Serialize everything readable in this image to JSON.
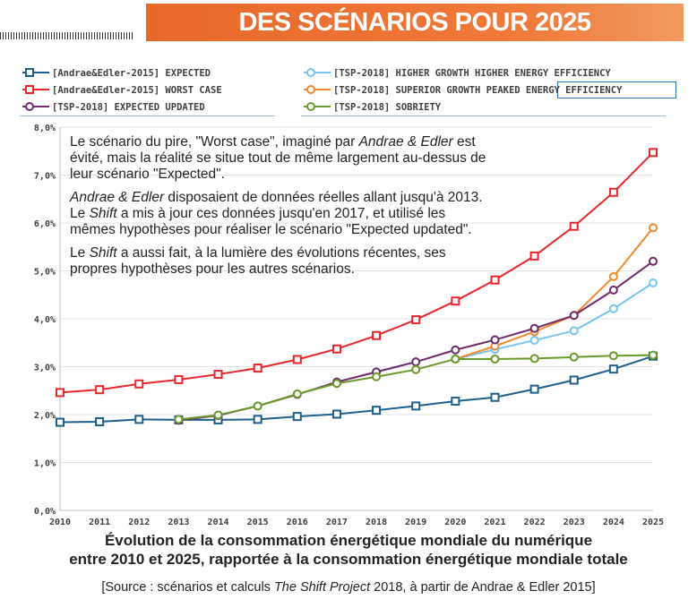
{
  "header": {
    "title": "DES SCÉNARIOS POUR 2025"
  },
  "annotation": {
    "p1": [
      "Le scénario du pire, \"Worst case\", imaginé par ",
      {
        "i": "Andrae & Edler"
      },
      " est évité, mais la réalité se situe tout de même largement au-dessus de leur scénario \"Expected\"."
    ],
    "p2": [
      {
        "i": "Andrae & Edler"
      },
      " disposaient de données réelles allant jusqu'à 2013. Le ",
      {
        "i": "Shift"
      },
      " a mis à jour ces données jusqu'en 2017, et utilisé les mêmes hypothèses pour réaliser le scénario \"Expected updated\"."
    ],
    "p3": [
      "Le ",
      {
        "i": "Shift"
      },
      " a aussi fait, à la lumière des évolutions récentes, ses propres hypothèses pour les autres scénarios."
    ]
  },
  "caption": {
    "line1": "Évolution de la consommation énergétique mondiale du numérique",
    "line2": "entre 2010 et 2025, rapportée à la consommation énergétique mondiale totale"
  },
  "source": [
    "[Source : scénarios et calculs ",
    {
      "i": "The Shift Project"
    },
    " 2018, à partir de Andrae & Edler 2015]"
  ],
  "chart_data": {
    "type": "line",
    "title": "",
    "xlabel": "",
    "ylabel": "",
    "x": [
      2010,
      2011,
      2012,
      2013,
      2014,
      2015,
      2016,
      2017,
      2018,
      2019,
      2020,
      2021,
      2022,
      2023,
      2024,
      2025
    ],
    "ylim": [
      0,
      8
    ],
    "yticks": [
      "0,0%",
      "1,0%",
      "2,0%",
      "3,0%",
      "4,0%",
      "5,0%",
      "6,0%",
      "7,0%",
      "8,0%"
    ],
    "grid": true,
    "legend_position": "top",
    "series": [
      {
        "name": "[Andrae&Edler-2015] EXPECTED",
        "color": "#1f5f8b",
        "marker": "square",
        "x": [
          2010,
          2011,
          2012,
          2013,
          2014,
          2015,
          2016,
          2017,
          2018,
          2019,
          2020,
          2021,
          2022,
          2023,
          2024,
          2025
        ],
        "values": [
          1.84,
          1.85,
          1.9,
          1.89,
          1.89,
          1.9,
          1.96,
          2.01,
          2.09,
          2.18,
          2.28,
          2.36,
          2.53,
          2.72,
          2.95,
          3.22
        ]
      },
      {
        "name": "[Andrae&Edler-2015] WORST CASE",
        "color": "#e8262b",
        "marker": "square",
        "x": [
          2010,
          2011,
          2012,
          2013,
          2014,
          2015,
          2016,
          2017,
          2018,
          2019,
          2020,
          2021,
          2022,
          2023,
          2024,
          2025
        ],
        "values": [
          2.46,
          2.52,
          2.64,
          2.73,
          2.84,
          2.97,
          3.15,
          3.37,
          3.65,
          3.98,
          4.37,
          4.81,
          5.31,
          5.93,
          6.64,
          7.47
        ]
      },
      {
        "name": "[TSP-2018] HIGHER GROWTH HIGHER ENERGY EFFICIENCY",
        "color": "#79c4ee",
        "marker": "circle",
        "x": [
          2020,
          2021,
          2022,
          2023,
          2024,
          2025
        ],
        "values": [
          3.16,
          3.36,
          3.55,
          3.75,
          4.21,
          4.75
        ]
      },
      {
        "name": "[TSP-2018] SUPERIOR GROWTH PEAKED ENERGY EFFICIENCY",
        "color": "#ef8a2e",
        "marker": "circle",
        "x": [
          2020,
          2021,
          2022,
          2023,
          2024,
          2025
        ],
        "values": [
          3.16,
          3.43,
          3.73,
          4.07,
          4.88,
          5.9
        ]
      },
      {
        "name": "[TSP-2018] EXPECTED UPDATED",
        "color": "#6e2a6b",
        "marker": "circle",
        "x": [
          2013,
          2014,
          2015,
          2016,
          2017,
          2018,
          2019,
          2020,
          2021,
          2022,
          2023,
          2024,
          2025
        ],
        "values": [
          1.88,
          1.98,
          2.18,
          2.42,
          2.68,
          2.89,
          3.1,
          3.35,
          3.56,
          3.8,
          4.07,
          4.6,
          5.2
        ]
      },
      {
        "name": "[TSP-2018] SOBRIETY",
        "color": "#6a9a2a",
        "marker": "circle",
        "x": [
          2013,
          2014,
          2015,
          2016,
          2017,
          2018,
          2019,
          2020,
          2021,
          2022,
          2023,
          2024,
          2025
        ],
        "values": [
          1.9,
          1.99,
          2.18,
          2.43,
          2.65,
          2.79,
          2.94,
          3.16,
          3.16,
          3.17,
          3.2,
          3.23,
          3.24
        ]
      }
    ]
  }
}
